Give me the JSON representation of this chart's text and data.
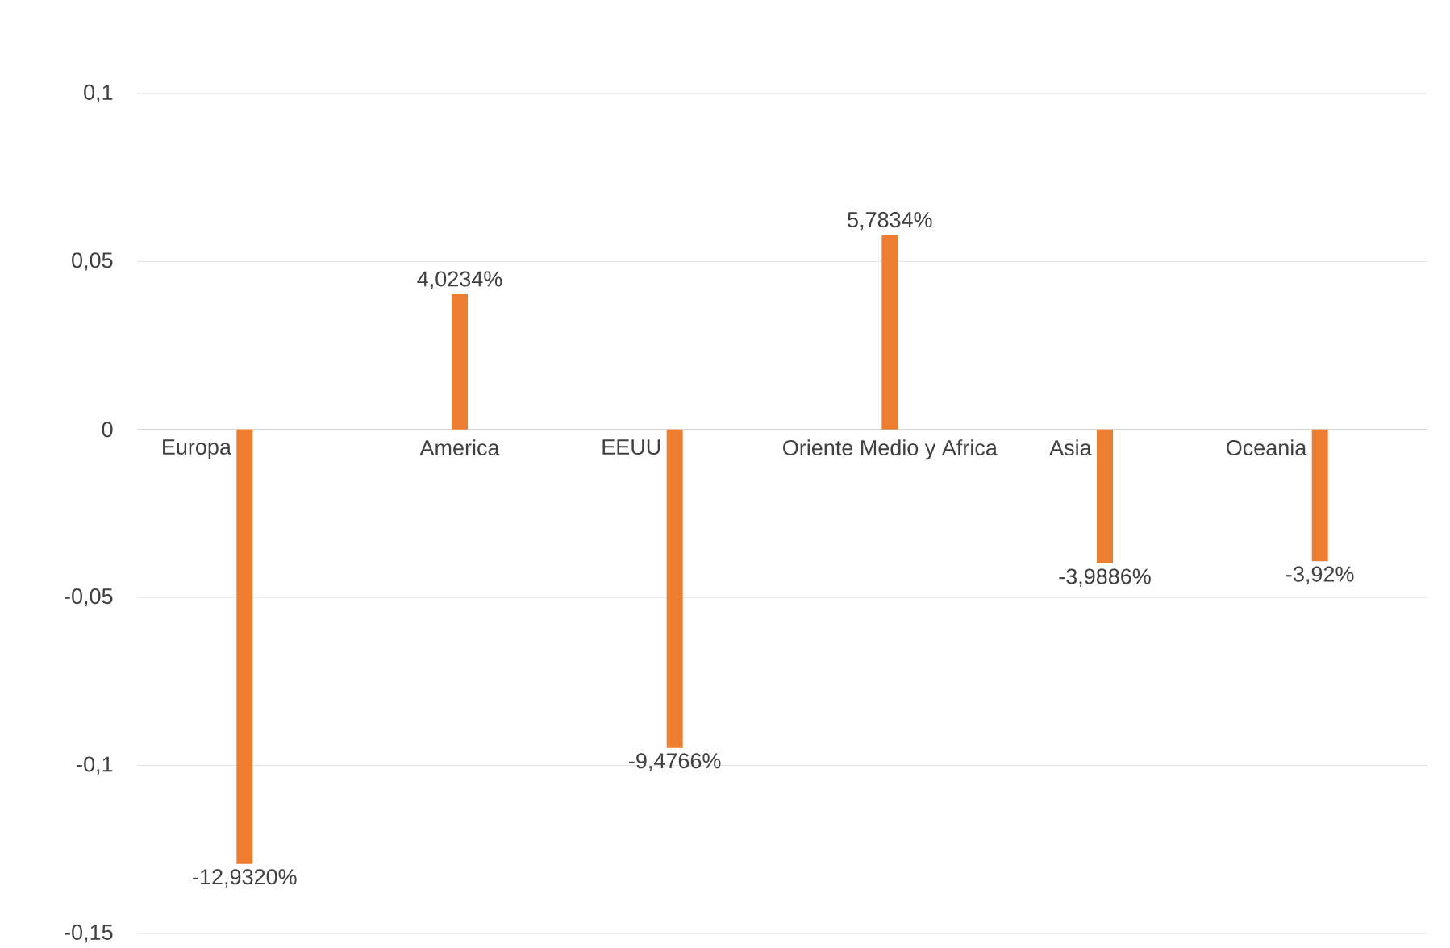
{
  "chart_data": {
    "type": "bar",
    "categories": [
      "Europa",
      "America",
      "EEUU",
      "Oriente Medio y Africa",
      "Asia",
      "Oceania"
    ],
    "values": [
      -0.12932,
      0.040234,
      -0.094766,
      0.057834,
      -0.039886,
      -0.0392
    ],
    "value_labels": [
      "-12,9320%",
      "4,0234%",
      "-9,4766%",
      "5,7834%",
      "-3,9886%",
      "-3,92%"
    ],
    "color": "#ed7d31",
    "ylim": [
      -0.15,
      0.1
    ],
    "yticks": [
      {
        "value": -0.15,
        "label": "-0,15"
      },
      {
        "value": -0.1,
        "label": "-0,1"
      },
      {
        "value": -0.05,
        "label": "-0,05"
      },
      {
        "value": 0,
        "label": "0"
      },
      {
        "value": 0.05,
        "label": "0,05"
      },
      {
        "value": 0.1,
        "label": "0,1"
      }
    ],
    "grid": "y"
  }
}
